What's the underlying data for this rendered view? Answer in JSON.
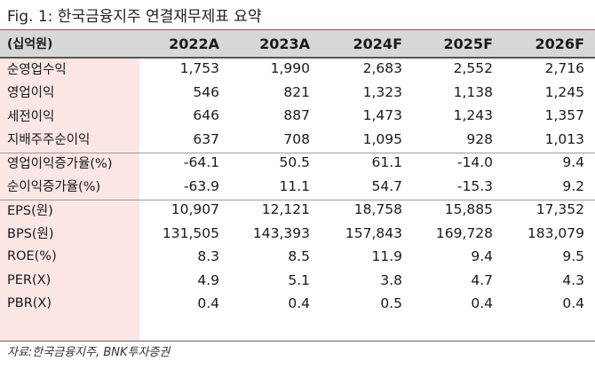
{
  "title": "Fig. 1:  한국금융지주 연결재무제표 요약",
  "table": {
    "unit_label": "(십억원)",
    "columns": [
      "2022A",
      "2023A",
      "2024F",
      "2025F",
      "2026F"
    ],
    "rows": [
      {
        "label": "순영업수익",
        "values": [
          "1,753",
          "1,990",
          "2,683",
          "2,552",
          "2,716"
        ]
      },
      {
        "label": "영업이익",
        "values": [
          "546",
          "821",
          "1,323",
          "1,138",
          "1,245"
        ]
      },
      {
        "label": "세전이익",
        "values": [
          "646",
          "887",
          "1,473",
          "1,243",
          "1,357"
        ]
      },
      {
        "label": "지배주주순이익",
        "values": [
          "637",
          "708",
          "1,095",
          "928",
          "1,013"
        ]
      },
      {
        "label": "영업이익증가율(%)",
        "values": [
          "-64.1",
          "50.5",
          "61.1",
          "-14.0",
          "9.4"
        ]
      },
      {
        "label": "순이익증가율(%)",
        "values": [
          "-63.9",
          "11.1",
          "54.7",
          "-15.3",
          "9.2"
        ]
      },
      {
        "label": "EPS(원)",
        "values": [
          "10,907",
          "12,121",
          "18,758",
          "15,885",
          "17,352"
        ]
      },
      {
        "label": "BPS(원)",
        "values": [
          "131,505",
          "143,393",
          "157,843",
          "169,728",
          "183,079"
        ]
      },
      {
        "label": "ROE(%)",
        "values": [
          "8.3",
          "8.5",
          "11.9",
          "9.4",
          "9.5"
        ]
      },
      {
        "label": "PER(X)",
        "values": [
          "4.9",
          "5.1",
          "3.8",
          "4.7",
          "4.3"
        ]
      },
      {
        "label": "PBR(X)",
        "values": [
          "0.4",
          "0.4",
          "0.5",
          "0.4",
          "0.4"
        ]
      }
    ]
  },
  "source": "자료:한국금융지주, BNK투자증권",
  "colors": {
    "accent_rule": "#d33a3a",
    "label_column": "#fbe5e5",
    "header_band": "#d7d7d7"
  }
}
